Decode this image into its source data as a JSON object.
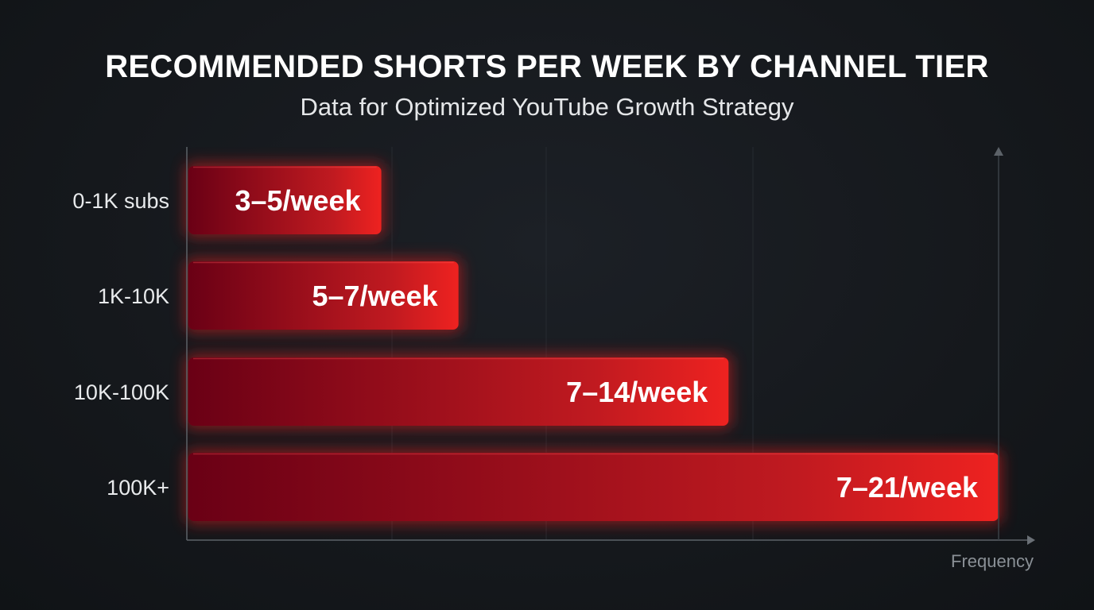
{
  "chart_data": {
    "type": "bar",
    "orientation": "horizontal",
    "title": "RECOMMENDED SHORTS PER WEEK BY CHANNEL TIER",
    "subtitle": "Data for Optimized YouTube Growth Strategy",
    "xlabel": "Frequency",
    "ylabel": "",
    "categories": [
      "0-1K subs",
      "1K-10K",
      "10K-100K",
      "100K+"
    ],
    "ranges": [
      [
        3,
        5
      ],
      [
        5,
        7
      ],
      [
        7,
        14
      ],
      [
        7,
        21
      ]
    ],
    "data_labels": [
      "3–5/week",
      "5–7/week",
      "7–14/week",
      "7–21/week"
    ],
    "xlim": [
      0,
      21
    ],
    "grid": true,
    "bar_color": "#e8201f",
    "bar_color_dark": "#6a0015",
    "background": "#16191d"
  }
}
